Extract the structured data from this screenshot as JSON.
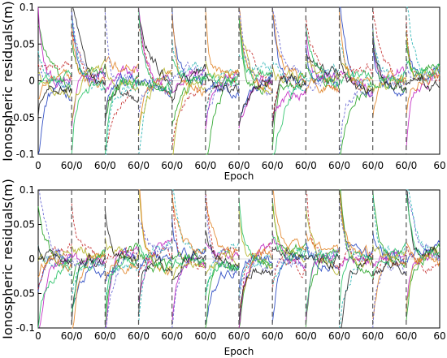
{
  "chart_data": [
    {
      "type": "line",
      "title": "",
      "xlabel": "Epoch",
      "ylabel": "Ionospheric residuals(m)",
      "ylim": [
        -0.1,
        0.1
      ],
      "yticks": [
        "0.1",
        "0.05",
        "0",
        "-0.05",
        "-0.1"
      ],
      "xticks": [
        "0",
        "60/0",
        "60/0",
        "60/0",
        "60/0",
        "60/0",
        "60/0",
        "60/0",
        "60/0",
        "60/0",
        "60/0",
        "60/0",
        "60"
      ],
      "segments": 12,
      "epochs_per_segment": 60,
      "series_colors": [
        "#1f3fbf",
        "#c02020",
        "#20a020",
        "#c020c0",
        "#20b0b0",
        "#b0b020",
        "#e08020",
        "#6060d0",
        "#202020",
        "#20c060"
      ],
      "series_note": "multiple satellite residual series, each restarting at segment boundaries (dashed vertical lines)"
    },
    {
      "type": "line",
      "title": "",
      "xlabel": "Epoch",
      "ylabel": "Ionospheric residuals(m)",
      "ylim": [
        -0.1,
        0.1
      ],
      "yticks": [
        "0.1",
        "0.05",
        "0",
        "-0.05",
        "-0.1"
      ],
      "xticks": [
        "0",
        "60/0",
        "60/0",
        "60/0",
        "60/0",
        "60/0",
        "60/0",
        "60/0",
        "60/0",
        "60/0",
        "60/0",
        "60/0",
        "60"
      ],
      "segments": 12,
      "epochs_per_segment": 60,
      "series_colors": [
        "#1f3fbf",
        "#c02020",
        "#20a020",
        "#c020c0",
        "#20b0b0",
        "#b0b020",
        "#e08020",
        "#6060d0",
        "#202020",
        "#20c060"
      ],
      "series_note": "multiple satellite residual series, each restarting at segment boundaries (dashed vertical lines)"
    }
  ]
}
